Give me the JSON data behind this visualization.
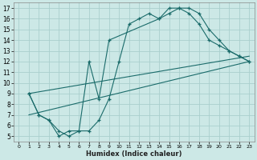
{
  "xlabel": "Humidex (Indice chaleur)",
  "bg_color": "#cce8e6",
  "grid_color": "#aacfcd",
  "line_color": "#1a6b6a",
  "xlim": [
    -0.5,
    23.5
  ],
  "ylim": [
    4.5,
    17.5
  ],
  "xticks": [
    0,
    1,
    2,
    3,
    4,
    5,
    6,
    7,
    8,
    9,
    10,
    11,
    12,
    13,
    14,
    15,
    16,
    17,
    18,
    19,
    20,
    21,
    22,
    23
  ],
  "yticks": [
    5,
    6,
    7,
    8,
    9,
    10,
    11,
    12,
    13,
    14,
    15,
    16,
    17
  ],
  "series": [
    {
      "x": [
        1,
        2,
        3,
        4,
        5,
        6,
        7,
        8,
        9,
        10,
        11,
        12,
        13,
        14,
        15,
        16,
        17,
        18,
        19,
        20,
        21,
        22,
        23
      ],
      "y": [
        9.0,
        7.0,
        6.5,
        5.5,
        5.0,
        5.5,
        5.5,
        6.5,
        8.5,
        12.0,
        15.5,
        16.0,
        16.5,
        16.0,
        16.5,
        17.0,
        17.0,
        16.5,
        15.0,
        14.0,
        13.0,
        12.5,
        12.0
      ],
      "has_markers": true
    },
    {
      "x": [
        1,
        2,
        3,
        4,
        5,
        6,
        7,
        8,
        9,
        14,
        15,
        16,
        17,
        18,
        19,
        20,
        21,
        22,
        23
      ],
      "y": [
        9.0,
        7.0,
        6.5,
        5.0,
        5.5,
        5.5,
        12.0,
        8.5,
        14.0,
        16.0,
        17.0,
        17.0,
        16.5,
        15.5,
        14.0,
        13.5,
        13.0,
        12.5,
        12.0
      ],
      "has_markers": true
    },
    {
      "x": [
        1,
        23
      ],
      "y": [
        7.0,
        12.0
      ],
      "has_markers": false
    },
    {
      "x": [
        1,
        23
      ],
      "y": [
        9.0,
        12.5
      ],
      "has_markers": false
    }
  ]
}
